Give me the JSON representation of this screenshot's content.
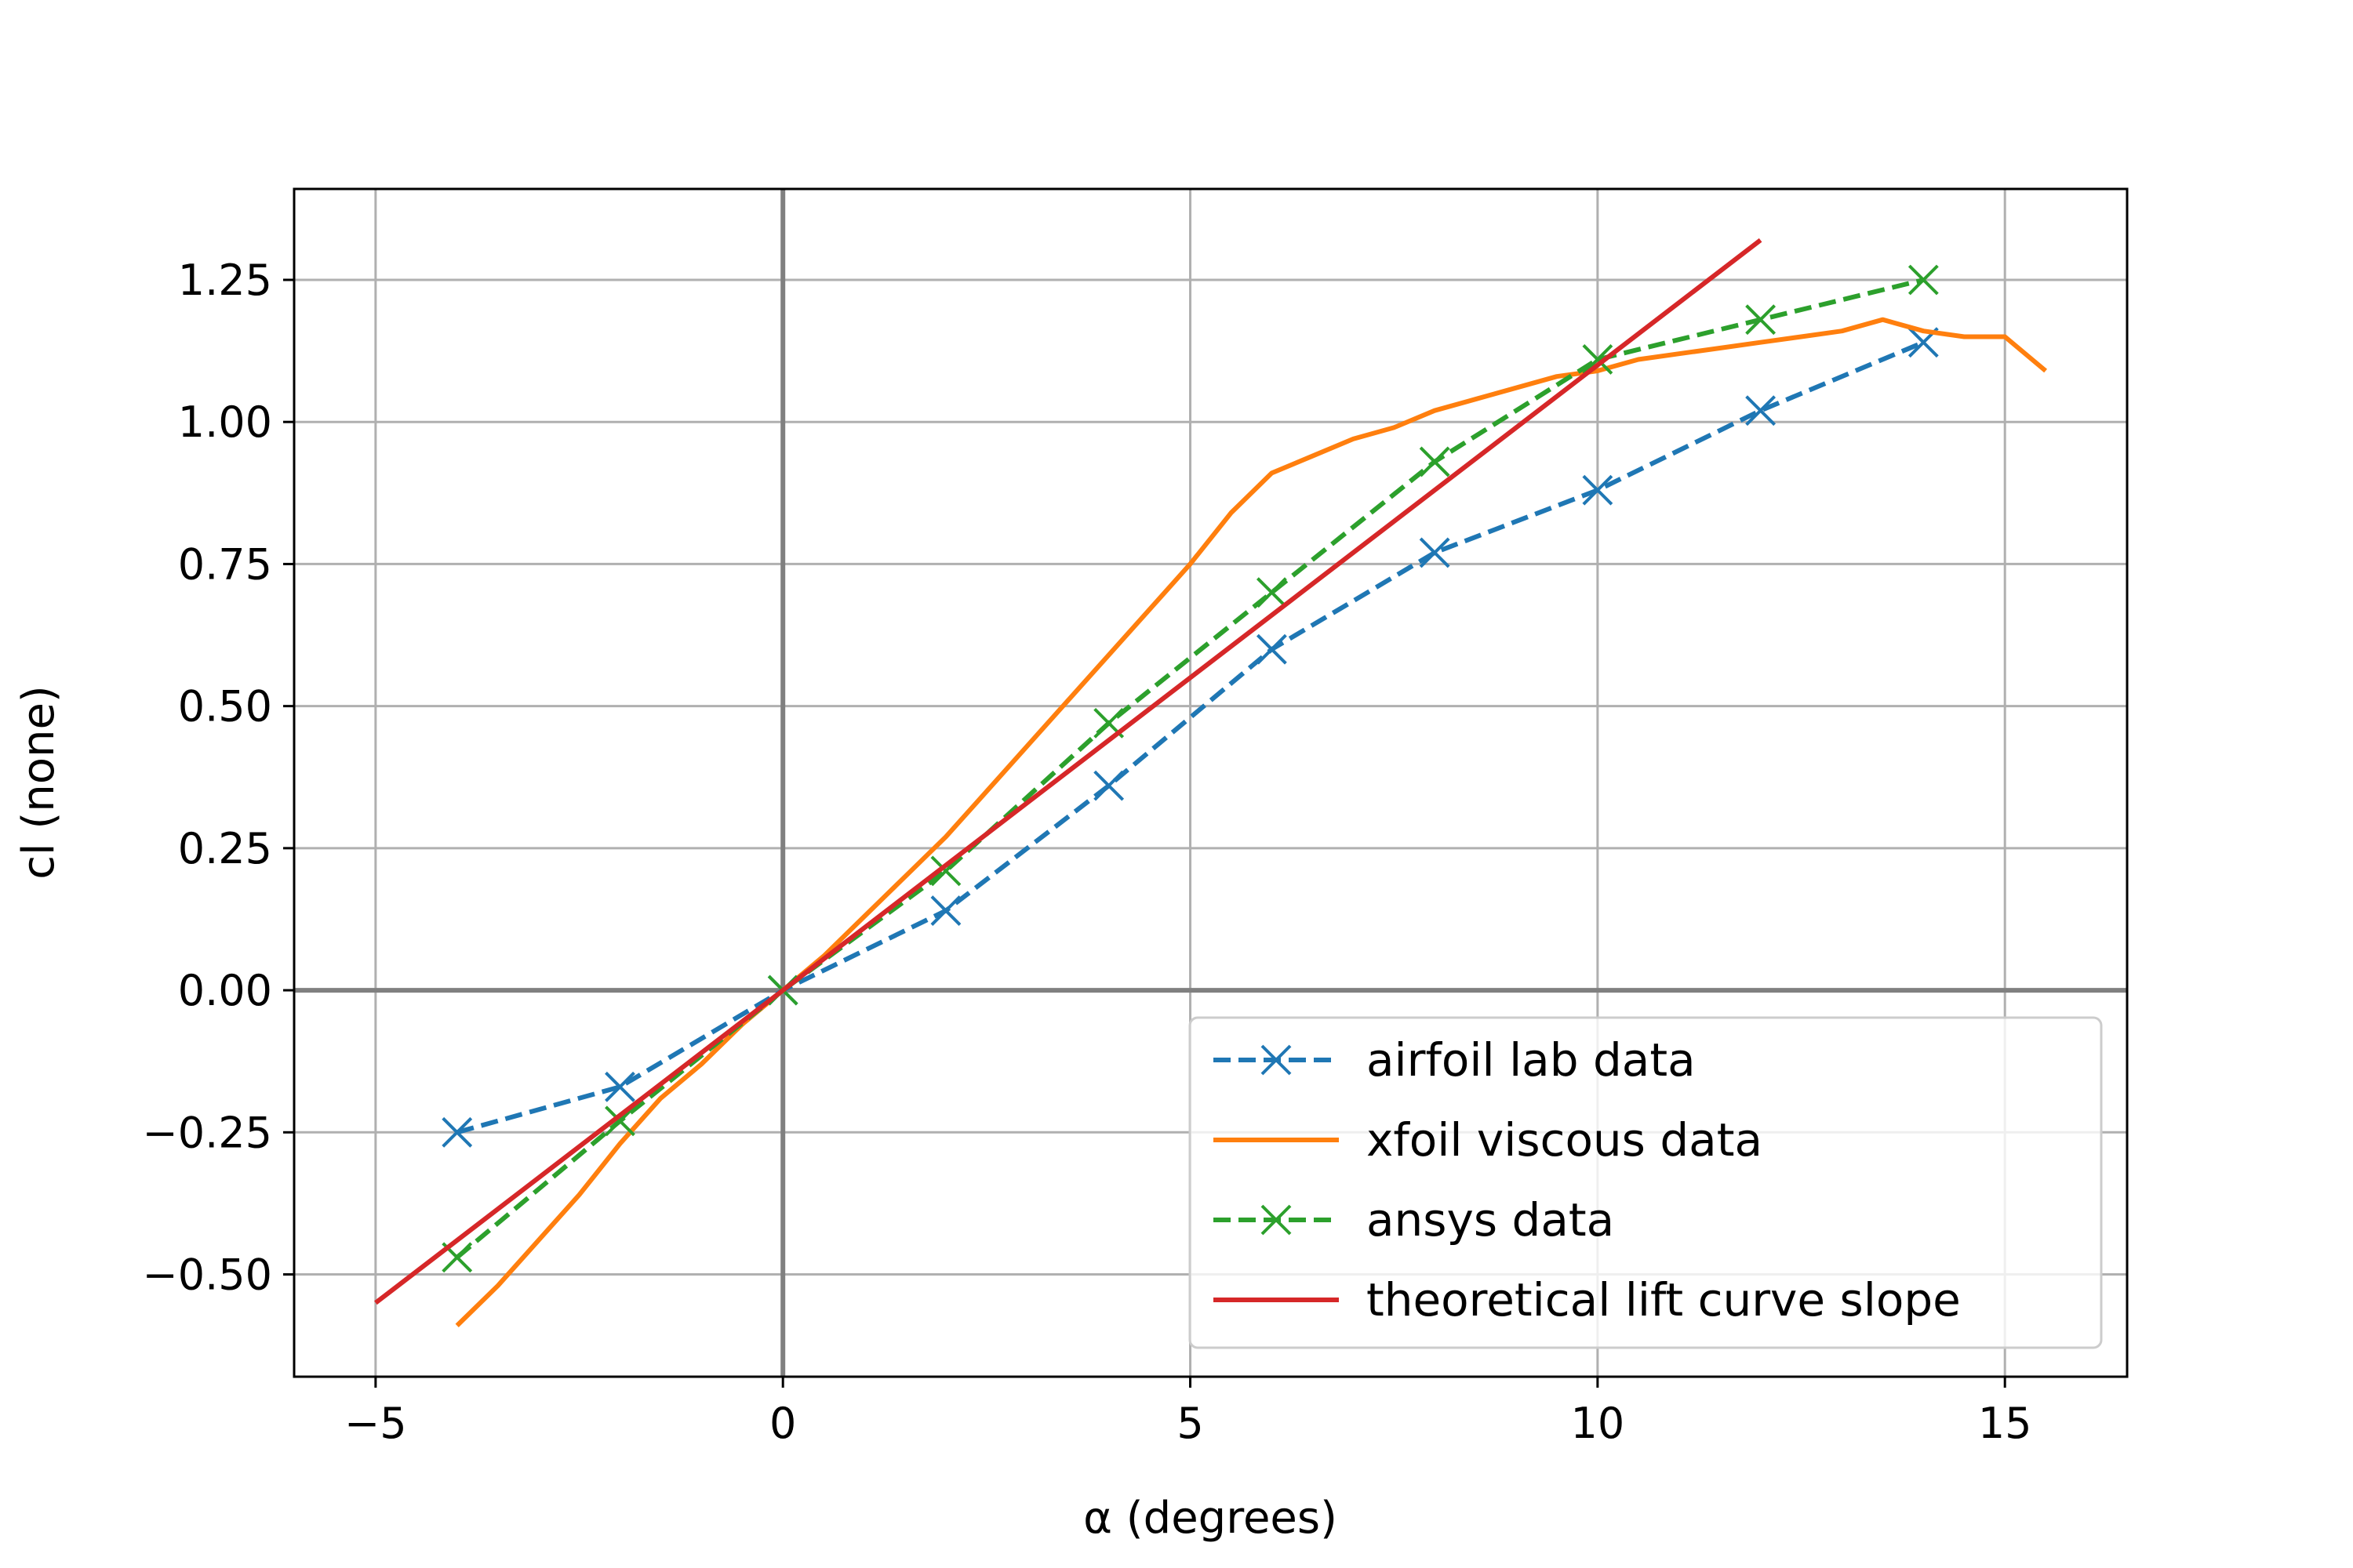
{
  "chart_data": {
    "type": "line",
    "xlabel": "α (degrees)",
    "ylabel": "cl (none)",
    "xlim": [
      -6,
      16.5
    ],
    "ylim": [
      -0.68,
      1.41
    ],
    "xticks": [
      -5,
      0,
      5,
      10,
      15
    ],
    "xtick_labels": [
      "−5",
      "0",
      "5",
      "10",
      "15"
    ],
    "yticks": [
      -0.5,
      -0.25,
      0.0,
      0.25,
      0.5,
      0.75,
      1.0,
      1.25
    ],
    "ytick_labels": [
      "−0.50",
      "−0.25",
      "0.00",
      "0.25",
      "0.50",
      "0.75",
      "1.00",
      "1.25"
    ],
    "grid": true,
    "zero_lines": true,
    "legend_position": "lower-right",
    "series": [
      {
        "name": "airfoil lab data",
        "color": "#1f77b4",
        "style": "dashed",
        "marker": "x",
        "x": [
          -4,
          -2,
          0,
          2,
          4,
          6,
          8,
          10,
          12,
          14
        ],
        "y": [
          -0.25,
          -0.17,
          0.0,
          0.14,
          0.36,
          0.6,
          0.77,
          0.88,
          1.02,
          1.14
        ]
      },
      {
        "name": "xfoil viscous data",
        "color": "#ff7f0e",
        "style": "solid",
        "marker": "none",
        "x": [
          -4,
          -3.5,
          -3,
          -2.5,
          -2,
          -1.5,
          -1,
          -0.5,
          0,
          0.5,
          1,
          1.5,
          2,
          2.5,
          3,
          3.5,
          4,
          4.5,
          5,
          5.5,
          6,
          6.5,
          7,
          7.5,
          8,
          8.5,
          9,
          9.5,
          10,
          10.5,
          11,
          11.5,
          12,
          12.5,
          13,
          13.5,
          14,
          14.5,
          15,
          15.5
        ],
        "y": [
          -0.59,
          -0.52,
          -0.44,
          -0.36,
          -0.27,
          -0.19,
          -0.13,
          -0.06,
          0.0,
          0.06,
          0.13,
          0.2,
          0.27,
          0.35,
          0.43,
          0.51,
          0.59,
          0.67,
          0.75,
          0.84,
          0.91,
          0.94,
          0.97,
          0.99,
          1.02,
          1.04,
          1.06,
          1.08,
          1.09,
          1.11,
          1.12,
          1.13,
          1.14,
          1.15,
          1.16,
          1.18,
          1.16,
          1.15,
          1.15,
          1.09
        ]
      },
      {
        "name": "ansys data",
        "color": "#2ca02c",
        "style": "dashed",
        "marker": "x",
        "x": [
          -4,
          -2,
          0,
          2,
          4,
          6,
          8,
          10,
          12,
          14
        ],
        "y": [
          -0.47,
          -0.23,
          0.0,
          0.21,
          0.47,
          0.7,
          0.93,
          1.11,
          1.18,
          1.25
        ]
      },
      {
        "name": "theoretical lift curve slope",
        "color": "#d62728",
        "style": "solid",
        "marker": "none",
        "x": [
          -5,
          12
        ],
        "y": [
          -0.55,
          1.32
        ]
      }
    ]
  }
}
